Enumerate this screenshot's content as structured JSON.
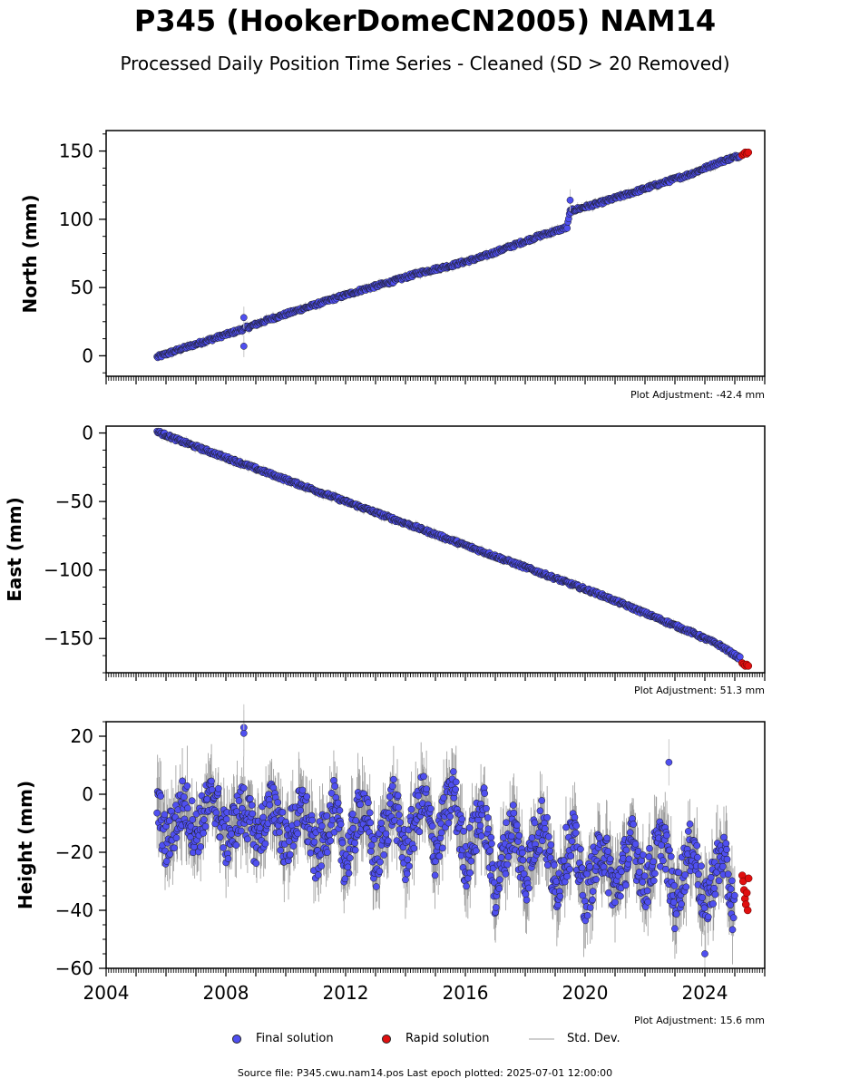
{
  "header": {
    "title": "P345 (HookerDomeCN2005) NAM14",
    "subtitle": "Processed Daily Position Time Series - Cleaned (SD > 20 Removed)"
  },
  "panels": [
    {
      "ylabel": "North (mm)",
      "adjustment": "Plot Adjustment: -42.4 mm"
    },
    {
      "ylabel": "East (mm)",
      "adjustment": "Plot Adjustment: 51.3 mm"
    },
    {
      "ylabel": "Height (mm)",
      "adjustment": "Plot Adjustment: 15.6 mm"
    }
  ],
  "legend": {
    "final": "Final solution",
    "rapid": "Rapid solution",
    "std": "Std. Dev."
  },
  "footer": {
    "source": "Source file: P345.cwu.nam14.pos  Last epoch plotted: 2025-07-01 12:00:00"
  },
  "colors": {
    "final": "#4f4ff0",
    "rapid": "#e01010",
    "stddev": "#c8c8c8",
    "edge": "#1a1a1a"
  },
  "chart_data": [
    {
      "type": "scatter",
      "ylabel": "North (mm)",
      "xlim": [
        2004.0,
        2026.0
      ],
      "ylim": [
        -15,
        165
      ],
      "yticks": [
        0,
        50,
        100,
        150
      ],
      "series": [
        {
          "name": "Final solution",
          "x": [
            2005.7,
            2006.5,
            2007.5,
            2008.5,
            2009.5,
            2010.5,
            2011.5,
            2012.5,
            2013.5,
            2014.5,
            2015.5,
            2016.5,
            2017.5,
            2018.5,
            2019.4,
            2019.5,
            2020.5,
            2021.5,
            2022.5,
            2023.5,
            2024.5,
            2025.2
          ],
          "y": [
            -1,
            5,
            12,
            19,
            27,
            34,
            41,
            48,
            54,
            61,
            66,
            72,
            80,
            88,
            94,
            106,
            112,
            119,
            126,
            133,
            142,
            147
          ]
        },
        {
          "name": "Rapid solution",
          "x": [
            2025.25,
            2025.3,
            2025.35,
            2025.4,
            2025.45
          ],
          "y": [
            147,
            148,
            149,
            148,
            149
          ]
        }
      ],
      "outliers": [
        {
          "x": 2008.6,
          "y": 28
        },
        {
          "x": 2008.6,
          "y": 7
        },
        {
          "x": 2019.5,
          "y": 114
        }
      ]
    },
    {
      "type": "scatter",
      "ylabel": "East (mm)",
      "xlim": [
        2004.0,
        2026.0
      ],
      "ylim": [
        -175,
        5
      ],
      "yticks": [
        0,
        -50,
        -100,
        -150
      ],
      "series": [
        {
          "name": "Final solution",
          "x": [
            2005.7,
            2006.5,
            2007.5,
            2008.5,
            2009.5,
            2010.5,
            2011.5,
            2012.5,
            2013.5,
            2014.5,
            2015.5,
            2016.5,
            2017.5,
            2018.5,
            2019.5,
            2020.5,
            2021.5,
            2022.5,
            2023.5,
            2024.5,
            2025.2
          ],
          "y": [
            1,
            -6,
            -14,
            -22,
            -30,
            -38,
            -46,
            -54,
            -62,
            -70,
            -78,
            -86,
            -94,
            -102,
            -110,
            -118,
            -127,
            -136,
            -145,
            -155,
            -165
          ]
        },
        {
          "name": "Rapid solution",
          "x": [
            2025.25,
            2025.3,
            2025.35,
            2025.4,
            2025.45
          ],
          "y": [
            -168,
            -169,
            -170,
            -169,
            -170
          ]
        }
      ]
    },
    {
      "type": "scatter",
      "ylabel": "Height (mm)",
      "xlim": [
        2004.0,
        2026.0
      ],
      "ylim": [
        -60,
        25
      ],
      "yticks": [
        20,
        0,
        -20,
        -40,
        -60
      ],
      "xticks": [
        2004,
        2008,
        2012,
        2016,
        2020,
        2024
      ],
      "series": [
        {
          "name": "Final solution",
          "x": [
            2005.7,
            2006.0,
            2006.3,
            2006.6,
            2007.0,
            2007.3,
            2007.6,
            2008.0,
            2008.3,
            2008.6,
            2009.0,
            2009.3,
            2009.6,
            2010.0,
            2010.3,
            2010.6,
            2011.0,
            2011.3,
            2011.6,
            2012.0,
            2012.3,
            2012.6,
            2013.0,
            2013.3,
            2013.6,
            2014.0,
            2014.3,
            2014.6,
            2015.0,
            2015.3,
            2015.6,
            2016.0,
            2016.3,
            2016.6,
            2017.0,
            2017.3,
            2017.6,
            2018.0,
            2018.3,
            2018.6,
            2019.0,
            2019.3,
            2019.6,
            2020.0,
            2020.3,
            2020.6,
            2021.0,
            2021.3,
            2021.6,
            2022.0,
            2022.3,
            2022.6,
            2023.0,
            2023.3,
            2023.6,
            2024.0,
            2024.3,
            2024.6,
            2025.0
          ],
          "y": [
            -2,
            -18,
            -10,
            -2,
            -14,
            -6,
            0,
            -16,
            -10,
            -4,
            -16,
            -10,
            -2,
            -18,
            -10,
            -4,
            -22,
            -14,
            -4,
            -24,
            -12,
            -2,
            -26,
            -12,
            -2,
            -22,
            -10,
            0,
            -20,
            -8,
            2,
            -24,
            -14,
            -4,
            -34,
            -20,
            -10,
            -30,
            -16,
            -8,
            -34,
            -22,
            -14,
            -36,
            -26,
            -18,
            -34,
            -24,
            -16,
            -32,
            -22,
            -14,
            -38,
            -26,
            -16,
            -40,
            -28,
            -20,
            -42
          ]
        },
        {
          "name": "Rapid solution",
          "x": [
            2025.25,
            2025.28,
            2025.31,
            2025.34,
            2025.37,
            2025.4,
            2025.43,
            2025.46
          ],
          "y": [
            -28,
            -30,
            -33,
            -36,
            -38,
            -34,
            -40,
            -29
          ]
        }
      ],
      "outliers": [
        {
          "x": 2008.6,
          "y": 23
        },
        {
          "x": 2008.6,
          "y": 21
        },
        {
          "x": 2022.8,
          "y": 11
        },
        {
          "x": 2024.0,
          "y": -55
        }
      ]
    }
  ]
}
